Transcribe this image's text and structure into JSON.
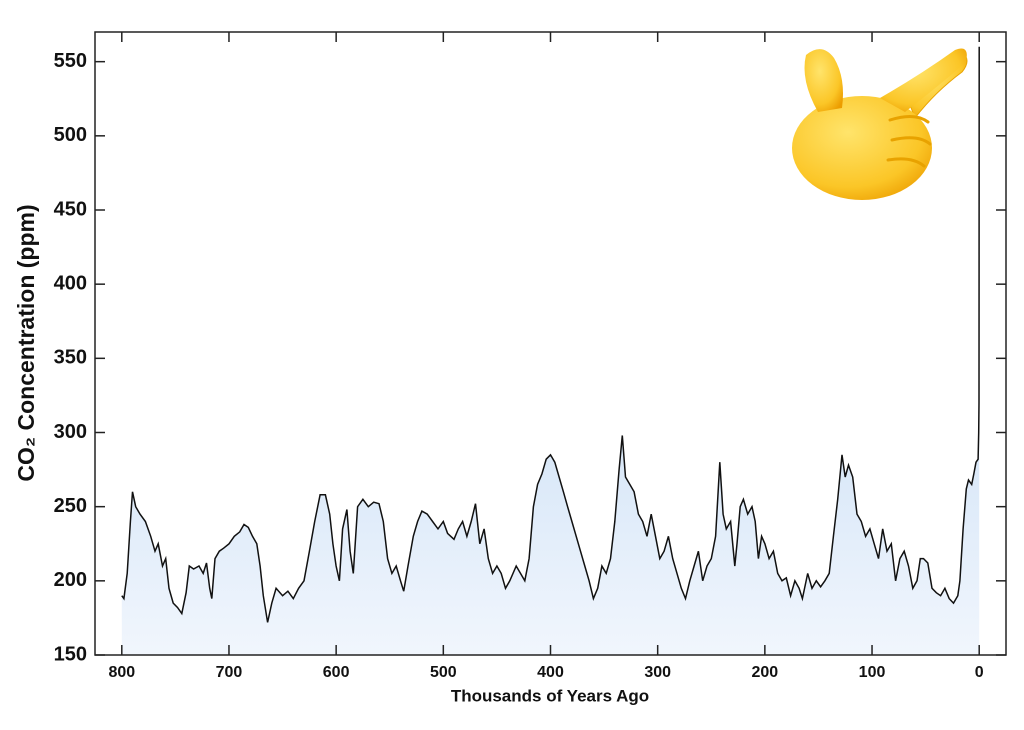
{
  "chart_data": {
    "type": "area",
    "y_label": "CO₂ Concentration (ppm)",
    "x_label": "Thousands of Years Ago",
    "xlim": [
      825,
      -25
    ],
    "ylim": [
      150,
      570
    ],
    "xticks": [
      800,
      700,
      600,
      500,
      400,
      300,
      200,
      100,
      0
    ],
    "yticks": [
      150,
      200,
      250,
      300,
      350,
      400,
      450,
      500,
      550
    ],
    "line_color": "#111111",
    "fill_colors": [
      "#a9cbee",
      "#f1f6fd"
    ],
    "x": [
      800,
      798,
      795,
      792,
      790,
      787,
      783,
      778,
      773,
      769,
      766,
      762,
      759,
      756,
      752,
      748,
      744,
      740,
      737,
      733,
      728,
      724,
      721,
      718,
      716,
      713,
      709,
      705,
      700,
      695,
      690,
      686,
      682,
      678,
      674,
      671,
      668,
      664,
      660,
      656,
      650,
      645,
      640,
      635,
      630,
      625,
      620,
      615,
      610,
      606,
      603,
      600,
      597,
      594,
      590,
      587,
      584,
      580,
      575,
      570,
      565,
      560,
      556,
      552,
      548,
      544,
      540,
      537,
      533,
      528,
      524,
      520,
      515,
      510,
      505,
      500,
      496,
      490,
      486,
      482,
      478,
      474,
      470,
      466,
      462,
      458,
      454,
      450,
      446,
      442,
      438,
      432,
      428,
      424,
      420,
      416,
      412,
      408,
      404,
      400,
      396,
      392,
      388,
      384,
      380,
      376,
      372,
      368,
      364,
      360,
      356,
      352,
      348,
      344,
      340,
      336,
      333,
      330,
      326,
      322,
      318,
      314,
      310,
      306,
      302,
      298,
      294,
      290,
      286,
      282,
      278,
      274,
      270,
      266,
      262,
      258,
      254,
      250,
      246,
      242,
      239,
      236,
      232,
      228,
      226,
      223,
      220,
      216,
      212,
      209,
      206,
      203,
      200,
      196,
      192,
      188,
      184,
      180,
      176,
      172,
      168,
      165,
      160,
      156,
      152,
      148,
      144,
      140,
      136,
      132,
      128,
      125,
      122,
      118,
      114,
      110,
      106,
      102,
      98,
      94,
      90,
      86,
      82,
      78,
      74,
      70,
      66,
      62,
      58,
      55,
      52,
      48,
      44,
      40,
      36,
      32,
      28,
      24,
      20,
      18,
      15,
      12,
      10,
      7,
      5,
      3,
      1,
      0.5,
      0.2,
      0
    ],
    "values": [
      190,
      188,
      205,
      240,
      260,
      250,
      245,
      240,
      230,
      220,
      225,
      210,
      215,
      195,
      185,
      182,
      178,
      192,
      210,
      208,
      210,
      205,
      212,
      195,
      188,
      215,
      220,
      222,
      225,
      230,
      233,
      238,
      236,
      230,
      225,
      210,
      190,
      172,
      185,
      195,
      190,
      193,
      188,
      195,
      200,
      220,
      240,
      258,
      258,
      245,
      225,
      210,
      200,
      235,
      248,
      220,
      205,
      250,
      255,
      250,
      253,
      252,
      240,
      215,
      205,
      210,
      200,
      193,
      210,
      230,
      240,
      247,
      245,
      240,
      235,
      240,
      232,
      228,
      235,
      240,
      230,
      240,
      252,
      225,
      235,
      215,
      205,
      210,
      205,
      195,
      200,
      210,
      205,
      200,
      215,
      250,
      265,
      272,
      282,
      285,
      280,
      270,
      260,
      250,
      240,
      230,
      220,
      210,
      200,
      188,
      195,
      210,
      205,
      215,
      240,
      275,
      298,
      270,
      265,
      260,
      245,
      240,
      230,
      245,
      230,
      215,
      220,
      230,
      215,
      205,
      195,
      188,
      200,
      210,
      220,
      200,
      210,
      215,
      230,
      280,
      245,
      235,
      240,
      210,
      225,
      250,
      255,
      245,
      250,
      240,
      215,
      230,
      225,
      215,
      220,
      205,
      200,
      202,
      190,
      200,
      195,
      188,
      205,
      195,
      200,
      196,
      200,
      205,
      230,
      255,
      285,
      270,
      278,
      270,
      245,
      240,
      230,
      235,
      225,
      215,
      235,
      220,
      225,
      200,
      215,
      220,
      210,
      195,
      200,
      215,
      215,
      212,
      195,
      192,
      190,
      195,
      188,
      185,
      190,
      200,
      235,
      262,
      268,
      265,
      272,
      280,
      282,
      300,
      320,
      560
    ]
  }
}
